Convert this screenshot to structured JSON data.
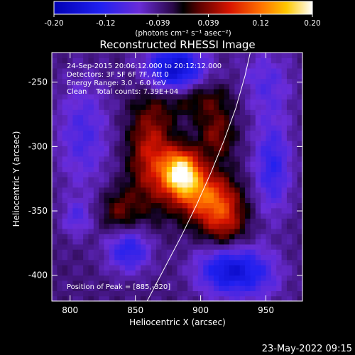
{
  "chart_data": {
    "type": "heatmap",
    "title": "Reconstructed RHESSI Image",
    "xlabel": "Heliocentric X (arcsec)",
    "ylabel": "Heliocentric Y (arcsec)",
    "xlim": [
      786,
      978
    ],
    "ylim": [
      -420,
      -227
    ],
    "xticks": [
      800,
      850,
      900,
      950
    ],
    "yticks": [
      -250,
      -300,
      -350,
      -400
    ],
    "colorbar": {
      "min": -0.2,
      "max": 0.2,
      "ticks": [
        "-0.20",
        "-0.12",
        "-0.039",
        "0.039",
        "0.12",
        "0.20"
      ],
      "unit_label": "(photons cm⁻² s⁻¹ asec⁻²)"
    },
    "annotations": [
      "24-Sep-2015 20:06:12.000 to 20:12:12.000",
      "Detectors: 3F 5F 6F 7F, Att 0",
      "Energy Range: 3.0 - 6.0 keV",
      "Clean    Total counts: 7.39E+04"
    ],
    "peak_label": "Position of Peak = [885,-320]",
    "peak": {
      "x": 885,
      "y": -320,
      "value": 0.2
    },
    "limb_curve": [
      [
        859,
        -420
      ],
      [
        872,
        -395
      ],
      [
        885,
        -370
      ],
      [
        897,
        -345
      ],
      [
        908,
        -320
      ],
      [
        918,
        -295
      ],
      [
        927,
        -270
      ],
      [
        934,
        -245
      ],
      [
        938,
        -227
      ]
    ],
    "sources": [
      {
        "x": 885,
        "y": -320,
        "sx": 10,
        "sy": 12,
        "amp": 0.22
      },
      {
        "x": 862,
        "y": -305,
        "sx": 12,
        "sy": 30,
        "amp": 0.1
      },
      {
        "x": 900,
        "y": -338,
        "sx": 14,
        "sy": 14,
        "amp": 0.12
      },
      {
        "x": 918,
        "y": -355,
        "sx": 12,
        "sy": 18,
        "amp": 0.1
      },
      {
        "x": 912,
        "y": -290,
        "sx": 10,
        "sy": 14,
        "amp": 0.07
      },
      {
        "x": 895,
        "y": -262,
        "sx": 20,
        "sy": 10,
        "amp": 0.06
      },
      {
        "x": 838,
        "y": -350,
        "sx": 10,
        "sy": 12,
        "amp": 0.06
      },
      {
        "x": 805,
        "y": -355,
        "sx": 8,
        "sy": 10,
        "amp": -0.05
      },
      {
        "x": 880,
        "y": -240,
        "sx": 16,
        "sy": 14,
        "amp": -0.14
      },
      {
        "x": 920,
        "y": -395,
        "sx": 16,
        "sy": 14,
        "amp": -0.12
      },
      {
        "x": 845,
        "y": -380,
        "sx": 12,
        "sy": 12,
        "amp": -0.09
      },
      {
        "x": 955,
        "y": -315,
        "sx": 10,
        "sy": 26,
        "amp": -0.08
      },
      {
        "x": 810,
        "y": -290,
        "sx": 14,
        "sy": 30,
        "amp": -0.06
      },
      {
        "x": 950,
        "y": -250,
        "sx": 14,
        "sy": 18,
        "amp": -0.05
      },
      {
        "x": 945,
        "y": -400,
        "sx": 14,
        "sy": 14,
        "amp": -0.05
      }
    ],
    "background": -0.035
  },
  "timestamp": "23-May-2022 09:15"
}
